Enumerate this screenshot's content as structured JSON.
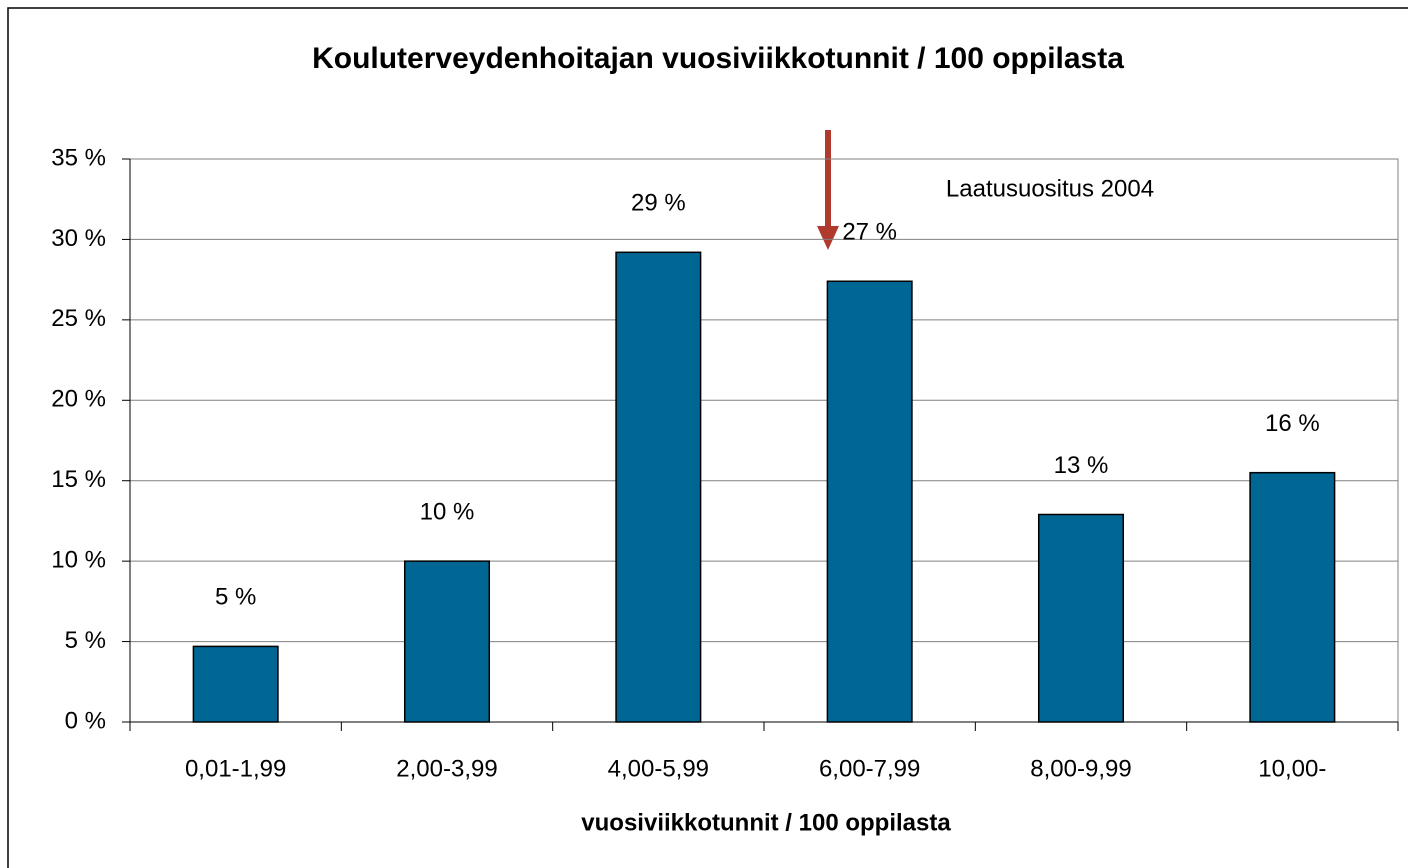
{
  "chart_data": {
    "type": "bar",
    "title": "Kouluterveydenhoitajan vuosiviikkotunnit / 100 oppilasta",
    "x_label": "vuosiviikkotunnit / 100 oppilasta",
    "annotation": "Laatusuositus 2004",
    "categories": [
      "0,01-1,99",
      "2,00-3,99",
      "4,00-5,99",
      "6,00-7,99",
      "8,00-9,99",
      "10,00-"
    ],
    "values": [
      4.7,
      10,
      29.2,
      27.4,
      12.9,
      15.5
    ],
    "value_labels": [
      "5 %",
      "10 %",
      "29 %",
      "27 %",
      "13 %",
      "16 %"
    ],
    "color": "#006693",
    "ylim": [
      0,
      35
    ],
    "yticks": [
      {
        "value": 0,
        "label": "0 %"
      },
      {
        "value": 5,
        "label": "5 %"
      },
      {
        "value": 10,
        "label": "10 %"
      },
      {
        "value": 15,
        "label": "15 %"
      },
      {
        "value": 20,
        "label": "20 %"
      },
      {
        "value": 25,
        "label": "25 %"
      },
      {
        "value": 30,
        "label": "30 %"
      },
      {
        "value": 35,
        "label": "35 %"
      }
    ],
    "grid": true
  }
}
